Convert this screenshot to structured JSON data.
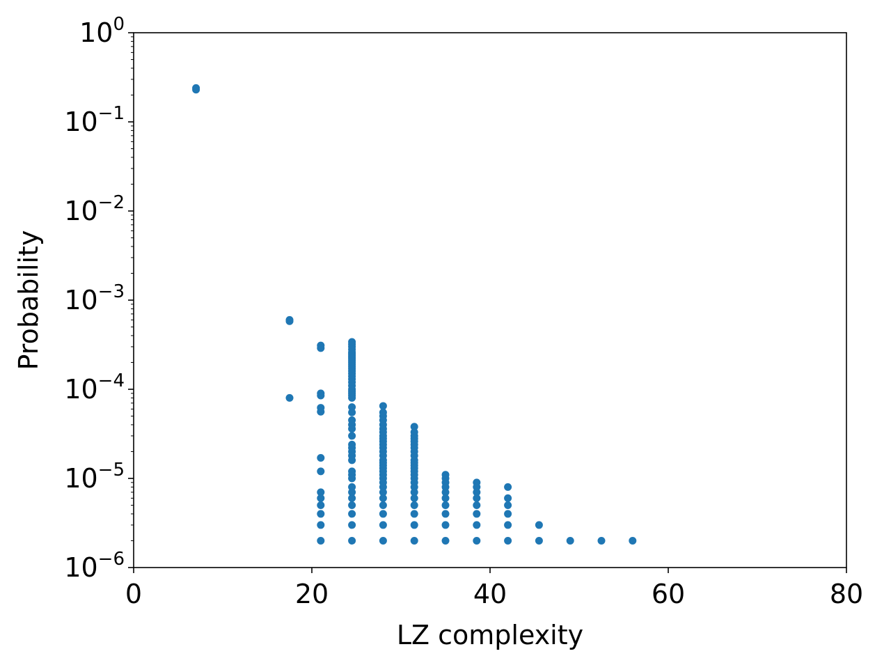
{
  "chart_data": {
    "type": "scatter",
    "title": "",
    "xlabel": "LZ complexity",
    "ylabel": "Probability",
    "xlim": [
      0,
      80
    ],
    "ylim": [
      1e-06,
      1
    ],
    "yscale": "log",
    "grid": false,
    "marker_color": "#1f77b4",
    "x_ticks": [
      {
        "value": 0,
        "label": "0"
      },
      {
        "value": 20,
        "label": "20"
      },
      {
        "value": 40,
        "label": "40"
      },
      {
        "value": 60,
        "label": "60"
      },
      {
        "value": 80,
        "label": "80"
      }
    ],
    "y_ticks": [
      {
        "value": 1,
        "base": "10",
        "exp": "0"
      },
      {
        "value": 0.1,
        "base": "10",
        "exp": "−1"
      },
      {
        "value": 0.01,
        "base": "10",
        "exp": "−2"
      },
      {
        "value": 0.001,
        "base": "10",
        "exp": "−3"
      },
      {
        "value": 0.0001,
        "base": "10",
        "exp": "−4"
      },
      {
        "value": 1e-05,
        "base": "10",
        "exp": "−5"
      },
      {
        "value": 1e-06,
        "base": "10",
        "exp": "−6"
      }
    ],
    "groups": [
      {
        "x": 7.0,
        "y": [
          0.24,
          0.23
        ]
      },
      {
        "x": 17.5,
        "y": [
          0.0006,
          0.00058,
          8e-05
        ]
      },
      {
        "x": 21.0,
        "y": [
          0.00031,
          0.00029,
          9e-05,
          8.5e-05,
          6.2e-05,
          5.6e-05,
          1.7e-05,
          1.2e-05,
          7e-06,
          6e-06,
          5e-06,
          4e-06,
          3e-06,
          2e-06
        ]
      },
      {
        "x": 24.5,
        "y": [
          0.00034,
          0.00032,
          0.0003,
          0.00028,
          0.00026,
          0.00025,
          0.00024,
          0.00023,
          0.00022,
          0.00021,
          0.0002,
          0.00019,
          0.00018,
          0.00017,
          0.00016,
          0.00015,
          0.00014,
          0.00013,
          0.00012,
          0.00011,
          0.0001,
          9.5e-05,
          9e-05,
          8.5e-05,
          8e-05,
          6.3e-05,
          5.5e-05,
          4.5e-05,
          4e-05,
          3.6e-05,
          3e-05,
          2.4e-05,
          2.2e-05,
          2e-05,
          1.8e-05,
          1.6e-05,
          1.2e-05,
          1.1e-05,
          1e-05,
          8e-06,
          7e-06,
          6e-06,
          5e-06,
          4e-06,
          3e-06,
          2e-06
        ]
      },
      {
        "x": 28.0,
        "y": [
          6.5e-05,
          5.5e-05,
          5e-05,
          4.5e-05,
          4e-05,
          3.6e-05,
          3.3e-05,
          3e-05,
          2.8e-05,
          2.6e-05,
          2.4e-05,
          2.2e-05,
          2e-05,
          1.8e-05,
          1.6e-05,
          1.5e-05,
          1.4e-05,
          1.3e-05,
          1.2e-05,
          1.1e-05,
          1e-05,
          9e-06,
          8e-06,
          7e-06,
          6e-06,
          5e-06,
          4e-06,
          3e-06,
          2e-06
        ]
      },
      {
        "x": 31.5,
        "y": [
          3.8e-05,
          3.3e-05,
          3e-05,
          2.8e-05,
          2.6e-05,
          2.4e-05,
          2.2e-05,
          2e-05,
          1.8e-05,
          1.6e-05,
          1.5e-05,
          1.4e-05,
          1.3e-05,
          1.2e-05,
          1.1e-05,
          1e-05,
          9e-06,
          8e-06,
          7e-06,
          6e-06,
          5e-06,
          4e-06,
          3e-06,
          2e-06
        ]
      },
      {
        "x": 35.0,
        "y": [
          1.1e-05,
          1e-05,
          9e-06,
          8e-06,
          7e-06,
          6e-06,
          5e-06,
          4e-06,
          3e-06,
          2e-06
        ]
      },
      {
        "x": 38.5,
        "y": [
          9e-06,
          8e-06,
          7e-06,
          6e-06,
          5e-06,
          4e-06,
          3e-06,
          2e-06
        ]
      },
      {
        "x": 42.0,
        "y": [
          8e-06,
          6e-06,
          5e-06,
          4e-06,
          3e-06,
          2e-06
        ]
      },
      {
        "x": 45.5,
        "y": [
          3e-06,
          2e-06
        ]
      },
      {
        "x": 49.0,
        "y": [
          2e-06
        ]
      },
      {
        "x": 52.5,
        "y": [
          2e-06
        ]
      },
      {
        "x": 56.0,
        "y": [
          2e-06
        ]
      }
    ]
  }
}
